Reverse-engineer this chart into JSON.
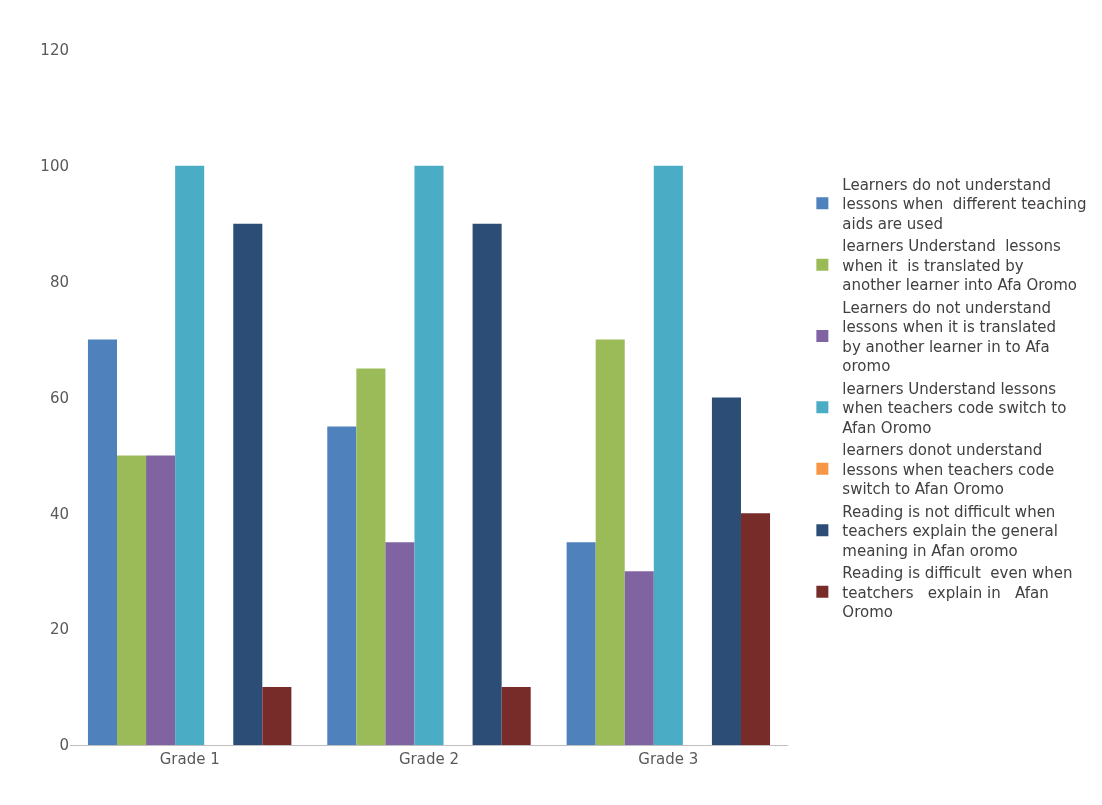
{
  "chart_data": {
    "type": "bar",
    "categories": [
      "Grade 1",
      "Grade 2",
      "Grade 3"
    ],
    "series": [
      {
        "name": "Learners do not understand lessons when  different teaching aids are used",
        "color": "#4f81bd",
        "values": [
          70,
          55,
          35
        ]
      },
      {
        "name": "learners Understand  lessons when it  is translated by another learner into Afa Oromo",
        "color": "#9bbb59",
        "values": [
          50,
          65,
          70
        ]
      },
      {
        "name": "Learners do not understand lessons when it is translated by another learner in to Afa oromo",
        "color": "#8064a2",
        "values": [
          50,
          35,
          30
        ]
      },
      {
        "name": "learners Understand lessons when teachers code switch to Afan Oromo",
        "color": "#4bacc6",
        "values": [
          100,
          100,
          100
        ]
      },
      {
        "name": "learners donot understand lessons when teachers code switch to Afan Oromo",
        "color": "#f79646",
        "values": [
          0,
          0,
          0
        ]
      },
      {
        "name": "Reading is not difficult when teachers explain the general meaning in Afan oromo",
        "color": "#2c4d75",
        "values": [
          90,
          90,
          60
        ]
      },
      {
        "name": "Reading is difficult  even when teatchers   explain in   Afan Oromo",
        "color": "#772c2a",
        "values": [
          10,
          10,
          40
        ]
      }
    ],
    "ylim": [
      0,
      120
    ],
    "yticks": [
      0,
      20,
      40,
      60,
      80,
      100,
      120
    ],
    "grid": false,
    "legend": "right"
  }
}
